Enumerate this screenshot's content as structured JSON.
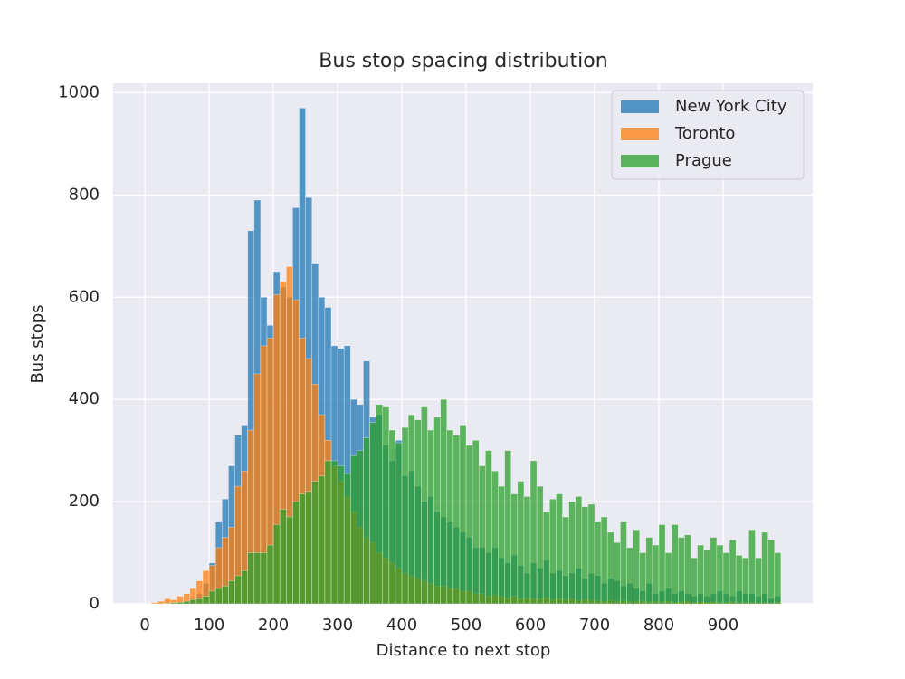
{
  "chart_data": {
    "type": "histogram",
    "title": "Bus stop spacing distribution",
    "x_label": "Distance to next stop",
    "y_label": "Bus stops",
    "bins": [
      0,
      10,
      20,
      30,
      40,
      50,
      60,
      70,
      80,
      90,
      100,
      110,
      120,
      130,
      140,
      150,
      160,
      170,
      180,
      190,
      200,
      210,
      220,
      230,
      240,
      250,
      260,
      270,
      280,
      290,
      300,
      310,
      320,
      330,
      340,
      350,
      360,
      370,
      380,
      390,
      400,
      410,
      420,
      430,
      440,
      450,
      460,
      470,
      480,
      490,
      500,
      510,
      520,
      530,
      540,
      550,
      560,
      570,
      580,
      590,
      600,
      610,
      620,
      630,
      640,
      650,
      660,
      670,
      680,
      690,
      700,
      710,
      720,
      730,
      740,
      750,
      760,
      770,
      780,
      790,
      800,
      810,
      820,
      830,
      840,
      850,
      860,
      870,
      880,
      890,
      900,
      910,
      920,
      930,
      940,
      950,
      960,
      970,
      980,
      990
    ],
    "series": [
      {
        "name": "New York City",
        "color": "#1f77b4",
        "values": [
          0,
          0,
          0,
          1,
          2,
          3,
          5,
          10,
          20,
          40,
          80,
          160,
          205,
          270,
          330,
          350,
          730,
          790,
          600,
          545,
          650,
          620,
          600,
          775,
          970,
          795,
          665,
          600,
          580,
          505,
          500,
          505,
          400,
          390,
          475,
          365,
          370,
          310,
          280,
          320,
          250,
          260,
          230,
          200,
          210,
          180,
          170,
          160,
          150,
          140,
          130,
          110,
          110,
          100,
          110,
          90,
          80,
          95,
          75,
          60,
          80,
          70,
          85,
          60,
          65,
          55,
          60,
          70,
          50,
          60,
          55,
          40,
          50,
          45,
          35,
          40,
          30,
          25,
          40,
          20,
          25,
          30,
          20,
          25,
          20,
          15,
          20,
          15,
          20,
          25,
          20,
          15,
          25,
          20,
          20,
          15,
          20,
          10,
          15
        ]
      },
      {
        "name": "Toronto",
        "color": "#ff7f0e",
        "values": [
          0,
          2,
          5,
          10,
          8,
          15,
          20,
          30,
          45,
          65,
          75,
          110,
          130,
          150,
          230,
          260,
          340,
          450,
          505,
          520,
          605,
          630,
          660,
          595,
          520,
          480,
          430,
          370,
          320,
          270,
          240,
          210,
          180,
          150,
          130,
          120,
          100,
          90,
          80,
          70,
          60,
          55,
          50,
          45,
          40,
          35,
          35,
          30,
          30,
          25,
          25,
          20,
          20,
          15,
          18,
          15,
          12,
          15,
          10,
          12,
          10,
          10,
          12,
          8,
          10,
          8,
          10,
          6,
          8,
          7,
          6,
          5,
          7,
          5,
          6,
          4,
          5,
          6,
          4,
          5,
          4,
          5,
          3,
          4,
          5,
          3,
          4,
          3,
          4,
          3,
          3,
          4,
          2,
          3,
          3,
          2,
          3,
          2,
          3
        ]
      },
      {
        "name": "Prague",
        "color": "#2ca02c",
        "values": [
          0,
          0,
          0,
          1,
          2,
          3,
          5,
          8,
          10,
          15,
          25,
          30,
          35,
          45,
          55,
          65,
          100,
          100,
          100,
          115,
          155,
          185,
          170,
          200,
          215,
          220,
          240,
          250,
          280,
          280,
          270,
          255,
          290,
          300,
          325,
          355,
          390,
          385,
          340,
          315,
          345,
          370,
          360,
          385,
          340,
          365,
          400,
          340,
          330,
          350,
          310,
          320,
          270,
          300,
          260,
          230,
          300,
          215,
          240,
          210,
          280,
          230,
          180,
          205,
          215,
          170,
          200,
          210,
          190,
          195,
          160,
          170,
          140,
          120,
          160,
          110,
          145,
          100,
          130,
          115,
          155,
          100,
          155,
          130,
          135,
          90,
          115,
          105,
          130,
          115,
          100,
          125,
          95,
          90,
          145,
          90,
          140,
          125,
          100
        ]
      }
    ],
    "xlim": [
      -49.5,
      1039.5
    ],
    "ylim": [
      0,
      1018.5
    ],
    "xticks": [
      0,
      100,
      200,
      300,
      400,
      500,
      600,
      700,
      800,
      900
    ],
    "yticks": [
      0,
      200,
      400,
      600,
      800,
      1000
    ],
    "grid": true,
    "legend": "upper right"
  }
}
